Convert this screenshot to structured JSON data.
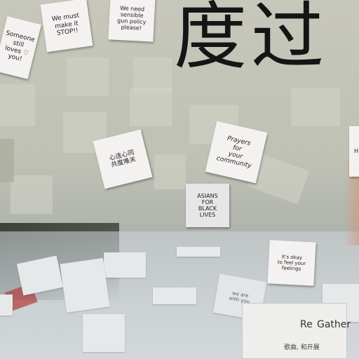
{
  "scene": {
    "characters": "度过",
    "notes": [
      {
        "id": "someone",
        "text": "Someone\nstill\nloves ♡\nyou!"
      },
      {
        "id": "we-must",
        "text": "We must\nmake it\nSTOP!!"
      },
      {
        "id": "sensible",
        "text": "We need\nsensible\ngun policy\nplease!"
      },
      {
        "id": "chinese",
        "text": "心连心同\n共度难关"
      },
      {
        "id": "prayers",
        "text": "Prayers\nfor\nyour\ncommunity"
      },
      {
        "id": "asians",
        "text": "ASIANS\nFOR\nBLACK\nLIVES"
      },
      {
        "id": "okay",
        "text": "It's okay\nto feel your\nfeelings"
      },
      {
        "id": "we-stand",
        "text": "we are\nwith you"
      },
      {
        "id": "edge",
        "text": "H"
      }
    ],
    "poster": {
      "title": "Gather",
      "prefix": "Re",
      "sub": "歌曲, 和开展"
    }
  },
  "colors": {
    "note": "#f4f2f1",
    "ink": "#151515"
  }
}
